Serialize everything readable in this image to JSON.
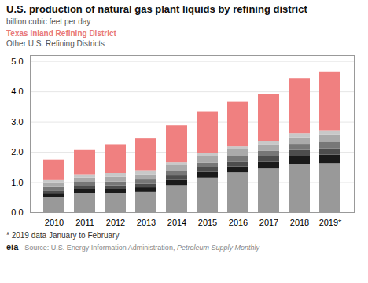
{
  "chart_data": {
    "type": "bar",
    "stacked": true,
    "title": "U.S. production of natural gas plant liquids by refining district",
    "subtitle": "billion cubic feet per day",
    "caption": "* 2019 data January to February",
    "source": "Source: U.S. Energy Information Administration, ",
    "source_title": "Petroleum Supply Monthly",
    "logo": "eia",
    "categories": [
      "2010",
      "2011",
      "2012",
      "2013",
      "2014",
      "2015",
      "2016",
      "2017",
      "2018",
      "2019*"
    ],
    "series": [
      {
        "color": "#999999",
        "values": [
          0.5,
          0.63,
          0.63,
          0.68,
          0.9,
          1.15,
          1.32,
          1.45,
          1.6,
          1.63
        ]
      },
      {
        "color": "#1a1a1a",
        "values": [
          0.12,
          0.13,
          0.14,
          0.15,
          0.18,
          0.19,
          0.2,
          0.22,
          0.26,
          0.28
        ]
      },
      {
        "color": "#4d4d4d",
        "values": [
          0.1,
          0.11,
          0.12,
          0.12,
          0.14,
          0.15,
          0.16,
          0.18,
          0.2,
          0.21
        ]
      },
      {
        "color": "#777777",
        "values": [
          0.12,
          0.13,
          0.13,
          0.14,
          0.15,
          0.16,
          0.17,
          0.18,
          0.2,
          0.21
        ]
      },
      {
        "color": "#aaaaaa",
        "values": [
          0.13,
          0.15,
          0.16,
          0.17,
          0.19,
          0.21,
          0.23,
          0.22,
          0.22,
          0.23
        ]
      },
      {
        "color": "#c8c8c8",
        "values": [
          0.1,
          0.11,
          0.12,
          0.13,
          0.1,
          0.1,
          0.1,
          0.1,
          0.14,
          0.13
        ]
      },
      {
        "color": "#f08080",
        "values": [
          0.68,
          0.8,
          0.95,
          1.05,
          1.22,
          1.38,
          1.47,
          1.55,
          1.82,
          1.97
        ]
      }
    ],
    "annotations": [
      {
        "text": "Texas Inland Refining District",
        "color": "#e87878"
      },
      {
        "text": "Other U.S. Refining Districts",
        "color": "#555555"
      }
    ],
    "ylim": [
      0,
      5.2
    ],
    "yticks": [
      0,
      1,
      2,
      3,
      4,
      5
    ],
    "grid": true
  }
}
